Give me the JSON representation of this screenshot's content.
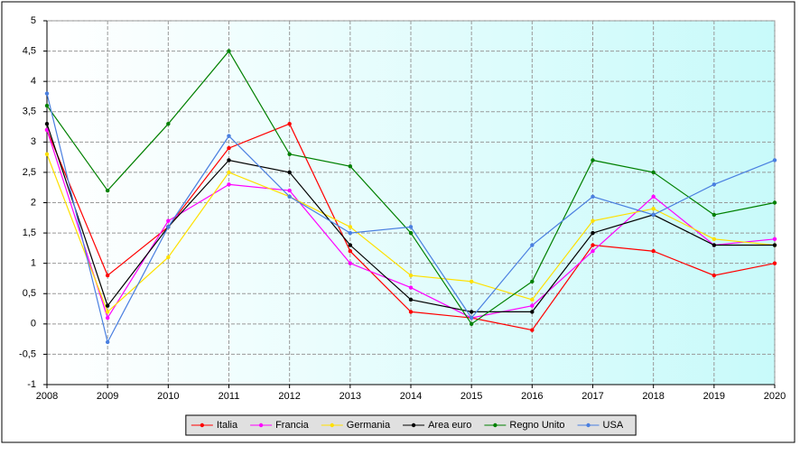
{
  "chart_data": {
    "type": "line",
    "x": [
      2008,
      2009,
      2010,
      2011,
      2012,
      2013,
      2014,
      2015,
      2016,
      2017,
      2018,
      2019,
      2020
    ],
    "xlim": [
      2008,
      2020
    ],
    "xticks": [
      2008,
      2009,
      2010,
      2011,
      2012,
      2013,
      2014,
      2015,
      2016,
      2017,
      2018,
      2019,
      2020
    ],
    "ylim": [
      -1,
      5
    ],
    "yticks": [
      -1,
      {
        "value": -0.5,
        "label": "-0,5"
      },
      0,
      {
        "value": 0.5,
        "label": "0,5"
      },
      1,
      {
        "value": 1.5,
        "label": "1,5"
      },
      2,
      {
        "value": 2.5,
        "label": "2,5"
      },
      3,
      {
        "value": 3.5,
        "label": "3,5"
      },
      4,
      {
        "value": 4.5,
        "label": "4,5"
      },
      5
    ],
    "grid": true,
    "legend": "bottom",
    "series": [
      {
        "name": "Italia",
        "color": "#ff0000",
        "values": [
          3.2,
          0.8,
          1.6,
          2.9,
          3.3,
          1.2,
          0.2,
          0.1,
          -0.1,
          1.3,
          1.2,
          0.8,
          1.0
        ]
      },
      {
        "name": "Francia",
        "color": "#ff00ff",
        "values": [
          3.2,
          0.1,
          1.7,
          2.3,
          2.2,
          1.0,
          0.6,
          0.1,
          0.3,
          1.2,
          2.1,
          1.3,
          1.4
        ]
      },
      {
        "name": "Germania",
        "color": "#ffe000",
        "values": [
          2.8,
          0.2,
          1.1,
          2.5,
          2.1,
          1.6,
          0.8,
          0.7,
          0.4,
          1.7,
          1.9,
          1.4,
          1.3
        ]
      },
      {
        "name": "Area euro",
        "color": "#000000",
        "values": [
          3.3,
          0.3,
          1.6,
          2.7,
          2.5,
          1.3,
          0.4,
          0.2,
          0.2,
          1.5,
          1.8,
          1.3,
          1.3
        ]
      },
      {
        "name": "Regno Unito",
        "color": "#008000",
        "values": [
          3.6,
          2.2,
          3.3,
          4.5,
          2.8,
          2.6,
          1.5,
          0.0,
          0.7,
          2.7,
          2.5,
          1.8,
          2.0
        ]
      },
      {
        "name": "USA",
        "color": "#4a7fe0",
        "values": [
          3.8,
          -0.3,
          1.6,
          3.1,
          2.1,
          1.5,
          1.6,
          0.1,
          1.3,
          2.1,
          1.8,
          2.3,
          2.7
        ]
      }
    ]
  }
}
